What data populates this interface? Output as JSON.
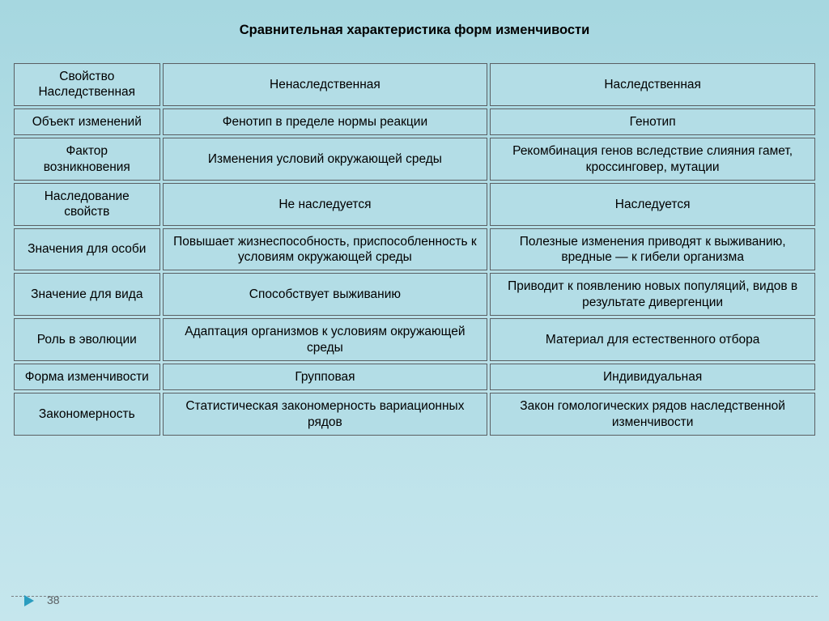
{
  "title": "Сравнительная характеристика форм изменчивости",
  "slide_number": "38",
  "table": {
    "columns_width": {
      "c1": 178,
      "c2": 396,
      "c3": 396
    },
    "cell_bg": "#b3dde6",
    "cell_border": "#5a5f63",
    "rows": [
      {
        "c1": "Свойство Наследственная",
        "c2": "Ненаследственная",
        "c3": "Наследственная"
      },
      {
        "c1": "Объект изменений",
        "c2": "Фенотип в пределе нормы реакции",
        "c3": "Генотип"
      },
      {
        "c1": "Фактор возникновения",
        "c2": "Изменения условий окружающей среды",
        "c3": "Рекомбинация генов вследствие слияния гамет, кроссинговер, мутации"
      },
      {
        "c1": "Наследование свойств",
        "c2": "Не наследуется",
        "c3": "Наследуется"
      },
      {
        "c1": "Значения для особи",
        "c2": "Повышает жизнеспособность, приспособленность к условиям окружающей среды",
        "c3": "Полезные изменения приводят к выживанию, вредные — к гибели организма"
      },
      {
        "c1": "Значение для вида",
        "c2": "Способствует выживанию",
        "c3": "Приводит к появлению новых популяций, видов в результате дивергенции"
      },
      {
        "c1": "Роль в эволюции",
        "c2": "Адаптация организмов к условиям окружающей среды",
        "c3": "Материал для естественного отбора"
      },
      {
        "c1": "Форма изменчивости",
        "c2": "Групповая",
        "c3": "Индивидуальная"
      },
      {
        "c1": "Закономерность",
        "c2": "Статистическая закономерность вариационных рядов",
        "c3": "Закон гомологических рядов наследственной изменчивости"
      }
    ]
  }
}
